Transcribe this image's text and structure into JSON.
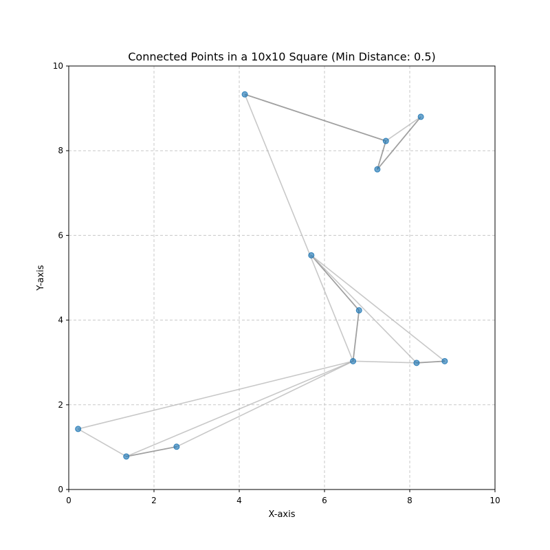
{
  "chart_data": {
    "type": "scatter",
    "title": "Connected Points in a 10x10 Square (Min Distance: 0.5)",
    "xlabel": "X-axis",
    "ylabel": "Y-axis",
    "xlim": [
      0,
      10
    ],
    "ylim": [
      0,
      10
    ],
    "xticks": [
      0,
      2,
      4,
      6,
      8,
      10
    ],
    "yticks": [
      0,
      2,
      4,
      6,
      8,
      10
    ],
    "grid": true,
    "points": [
      {
        "x": 4.13,
        "y": 9.33
      },
      {
        "x": 8.26,
        "y": 8.8
      },
      {
        "x": 7.44,
        "y": 8.23
      },
      {
        "x": 7.24,
        "y": 7.56
      },
      {
        "x": 5.69,
        "y": 5.53
      },
      {
        "x": 6.81,
        "y": 4.23
      },
      {
        "x": 6.67,
        "y": 3.03
      },
      {
        "x": 8.16,
        "y": 2.99
      },
      {
        "x": 8.82,
        "y": 3.03
      },
      {
        "x": 0.22,
        "y": 1.43
      },
      {
        "x": 1.35,
        "y": 0.78
      },
      {
        "x": 2.53,
        "y": 1.01
      }
    ],
    "edges": [
      {
        "from": 0,
        "to": 2,
        "strength": "dark"
      },
      {
        "from": 2,
        "to": 3,
        "strength": "dark"
      },
      {
        "from": 3,
        "to": 1,
        "strength": "dark"
      },
      {
        "from": 2,
        "to": 1,
        "strength": "light"
      },
      {
        "from": 0,
        "to": 6,
        "strength": "light"
      },
      {
        "from": 4,
        "to": 5,
        "strength": "dark"
      },
      {
        "from": 5,
        "to": 6,
        "strength": "dark"
      },
      {
        "from": 4,
        "to": 7,
        "strength": "light"
      },
      {
        "from": 4,
        "to": 8,
        "strength": "light"
      },
      {
        "from": 6,
        "to": 7,
        "strength": "light"
      },
      {
        "from": 7,
        "to": 8,
        "strength": "dark"
      },
      {
        "from": 6,
        "to": 9,
        "strength": "light"
      },
      {
        "from": 9,
        "to": 10,
        "strength": "light"
      },
      {
        "from": 10,
        "to": 11,
        "strength": "dark"
      },
      {
        "from": 6,
        "to": 10,
        "strength": "light"
      },
      {
        "from": 6,
        "to": 11,
        "strength": "light"
      }
    ],
    "colors": {
      "point": "#1f77b4",
      "edge_dark": "#808080",
      "edge_light": "#b0b0b0",
      "grid": "#c7c7c7"
    }
  }
}
